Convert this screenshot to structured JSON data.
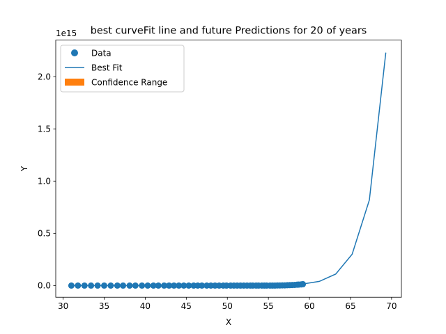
{
  "chart_data": {
    "type": "scatter",
    "title": "best curveFit line and future Predictions for 20 of years",
    "xlabel": "X",
    "ylabel": "Y",
    "y_offset_label": "1e15",
    "y_scale": 1000000000000000.0,
    "xlim": [
      29.1,
      71.2
    ],
    "ylim": [
      -0.112,
      2.35
    ],
    "xticks": [
      30,
      35,
      40,
      45,
      50,
      55,
      60,
      65,
      70
    ],
    "yticks": [
      0.0,
      0.5,
      1.0,
      1.5,
      2.0
    ],
    "ytick_labels": [
      "0.0",
      "0.5",
      "1.0",
      "1.5",
      "2.0"
    ],
    "grid": false,
    "legend_position": "upper-left",
    "legend": [
      {
        "label": "Data",
        "kind": "marker",
        "color": "#1f77b4"
      },
      {
        "label": "Best Fit",
        "kind": "line",
        "color": "#1f77b4"
      },
      {
        "label": "Confidence Range",
        "kind": "patch",
        "color": "#ff7f0e"
      }
    ],
    "series": [
      {
        "name": "Data",
        "kind": "scatter",
        "color": "#1f77b4",
        "x": [
          31.0,
          31.8,
          32.6,
          33.4,
          34.2,
          35.0,
          35.8,
          36.6,
          37.3,
          38.1,
          38.8,
          39.6,
          40.3,
          41.0,
          41.6,
          42.3,
          42.9,
          43.5,
          44.1,
          44.7,
          45.3,
          45.9,
          46.4,
          46.9,
          47.5,
          48.0,
          48.5,
          49.0,
          49.5,
          49.9,
          50.4,
          50.8,
          51.2,
          51.6,
          52.0,
          52.4,
          52.8,
          53.1,
          53.5,
          53.8,
          54.2,
          54.5,
          54.8,
          55.2,
          55.5,
          55.8,
          56.1,
          56.4,
          56.7,
          57.0,
          57.3,
          57.6,
          57.9,
          58.2,
          58.5,
          58.7,
          59.0,
          59.2
        ],
        "y": [
          0.0,
          0.0,
          0.0,
          0.0,
          0.0,
          0.0,
          0.0,
          0.0,
          0.0,
          0.0,
          0.0,
          0.0,
          0.0,
          0.0,
          0.0,
          0.0,
          0.0,
          0.0,
          0.0,
          0.0,
          0.0,
          0.0,
          0.0,
          0.0,
          0.0,
          0.0,
          0.0,
          0.0,
          0.0,
          0.0,
          0.0,
          0.0,
          0.0,
          0.0,
          0.0,
          0.0,
          0.0,
          0.0,
          0.0,
          0.0,
          0.0,
          0.0,
          0.0,
          0.0,
          0.0,
          0.0,
          0.001,
          0.001,
          0.002,
          0.002,
          0.003,
          0.004,
          0.005,
          0.006,
          0.008,
          0.009,
          0.011,
          0.013
        ]
      },
      {
        "name": "Best Fit",
        "kind": "line",
        "color": "#1f77b4",
        "x": [
          31.0,
          35.0,
          40.0,
          45.0,
          50.0,
          55.0,
          57.0,
          59.2,
          61.2,
          63.2,
          65.2,
          67.3,
          69.3
        ],
        "y": [
          0.0,
          0.0,
          0.0,
          0.0,
          0.0,
          0.0,
          0.003,
          0.015,
          0.04,
          0.11,
          0.3,
          0.82,
          2.23
        ]
      }
    ]
  }
}
